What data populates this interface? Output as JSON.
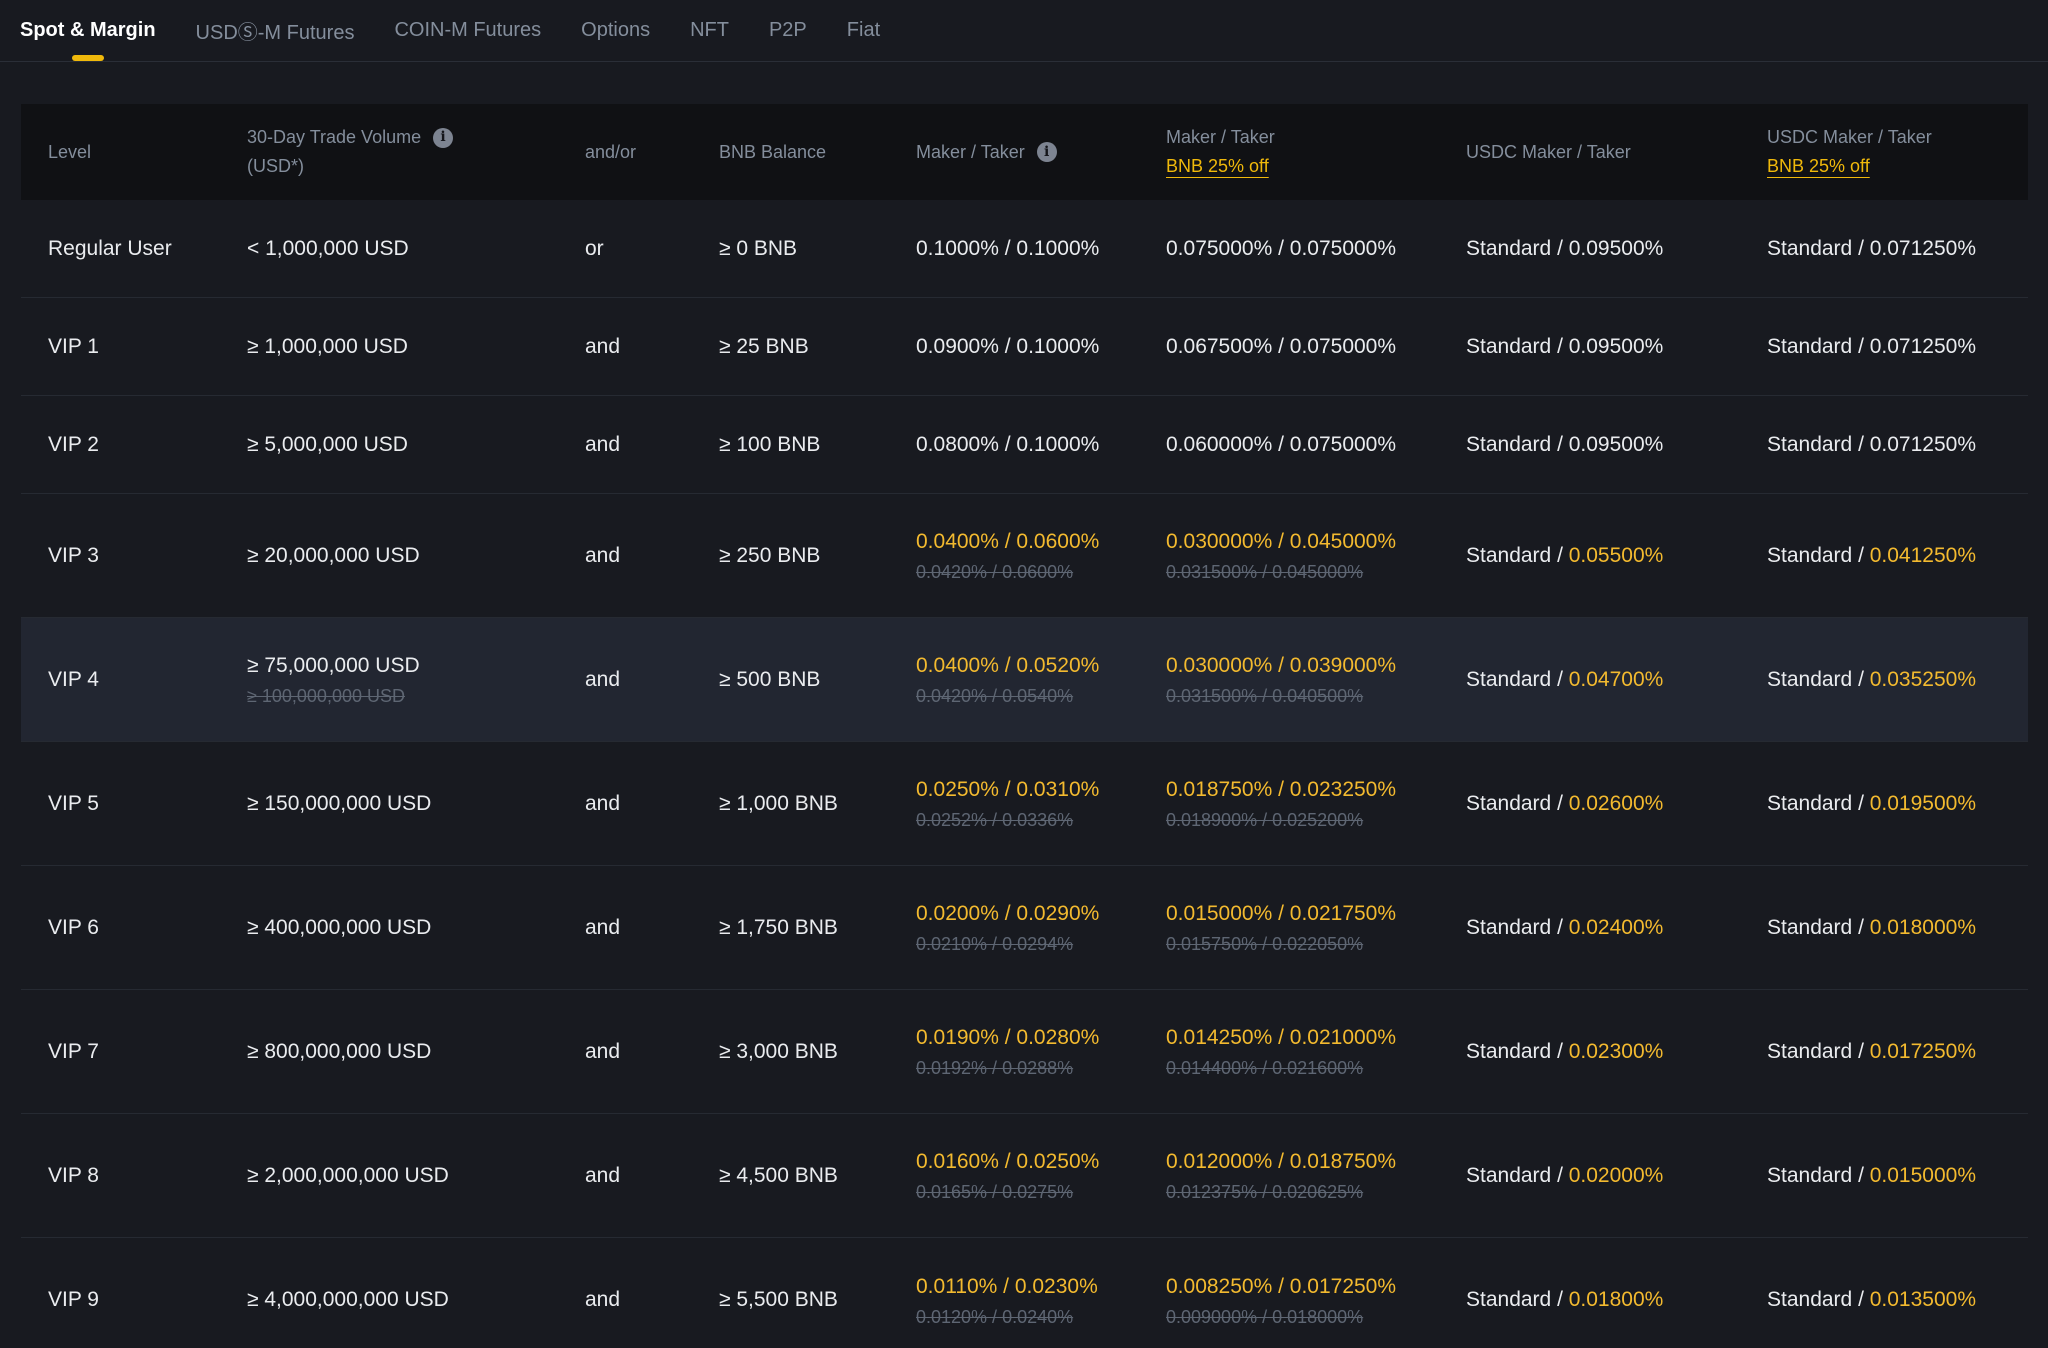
{
  "colors": {
    "background": "#181a20",
    "table_header_bg": "#101114",
    "highlight_row_bg": "#222631",
    "text_primary": "#eaecef",
    "text_muted": "#848e9c",
    "text_strikethrough": "#5e6673",
    "accent_link": "#f0b90b",
    "accent_value": "#f3ba2f",
    "divider": "#2a2e37"
  },
  "tabs": [
    {
      "label": "Spot & Margin",
      "active": true
    },
    {
      "label": "USDⓈ-M Futures",
      "active": false
    },
    {
      "label": "COIN-M Futures",
      "active": false
    },
    {
      "label": "Options",
      "active": false
    },
    {
      "label": "NFT",
      "active": false
    },
    {
      "label": "P2P",
      "active": false
    },
    {
      "label": "Fiat",
      "active": false
    }
  ],
  "table": {
    "headers": {
      "level": "Level",
      "volume_line1": "30-Day Trade Volume",
      "volume_line2": "(USD*)",
      "volume_info_icon": "info-icon",
      "andor": "and/or",
      "bnb_balance": "BNB Balance",
      "maker_taker": "Maker / Taker",
      "maker_taker_info_icon": "info-icon",
      "maker_taker_bnb": "Maker / Taker",
      "maker_taker_bnb_link": "BNB 25% off",
      "usdc_maker_taker": "USDC Maker / Taker",
      "usdc_maker_taker_bnb": "USDC Maker / Taker",
      "usdc_maker_taker_bnb_link": "BNB 25% off"
    },
    "rows": [
      {
        "level": "Regular User",
        "volume": "< 1,000,000 USD",
        "volume_old": "",
        "conjunction": "or",
        "bnb_balance": "≥ 0 BNB",
        "maker_taker": "0.1000% / 0.1000%",
        "maker_taker_old": "",
        "maker_taker_bnb": "0.075000% / 0.075000%",
        "maker_taker_bnb_old": "",
        "usdc_prefix": "Standard / ",
        "usdc_value": "0.09500%",
        "usdc_bnb_prefix": "Standard / ",
        "usdc_bnb_value": "0.071250%",
        "discounted": false,
        "highlighted": false
      },
      {
        "level": "VIP 1",
        "volume": "≥ 1,000,000 USD",
        "volume_old": "",
        "conjunction": "and",
        "bnb_balance": "≥ 25 BNB",
        "maker_taker": "0.0900% / 0.1000%",
        "maker_taker_old": "",
        "maker_taker_bnb": "0.067500% / 0.075000%",
        "maker_taker_bnb_old": "",
        "usdc_prefix": "Standard / ",
        "usdc_value": "0.09500%",
        "usdc_bnb_prefix": "Standard / ",
        "usdc_bnb_value": "0.071250%",
        "discounted": false,
        "highlighted": false
      },
      {
        "level": "VIP 2",
        "volume": "≥ 5,000,000 USD",
        "volume_old": "",
        "conjunction": "and",
        "bnb_balance": "≥ 100 BNB",
        "maker_taker": "0.0800% / 0.1000%",
        "maker_taker_old": "",
        "maker_taker_bnb": "0.060000% / 0.075000%",
        "maker_taker_bnb_old": "",
        "usdc_prefix": "Standard / ",
        "usdc_value": "0.09500%",
        "usdc_bnb_prefix": "Standard / ",
        "usdc_bnb_value": "0.071250%",
        "discounted": false,
        "highlighted": false
      },
      {
        "level": "VIP 3",
        "volume": "≥ 20,000,000 USD",
        "volume_old": "",
        "conjunction": "and",
        "bnb_balance": "≥ 250 BNB",
        "maker_taker": "0.0400% / 0.0600%",
        "maker_taker_old": "0.0420% / 0.0600%",
        "maker_taker_bnb": "0.030000% / 0.045000%",
        "maker_taker_bnb_old": "0.031500% / 0.045000%",
        "usdc_prefix": "Standard / ",
        "usdc_value": "0.05500%",
        "usdc_bnb_prefix": "Standard / ",
        "usdc_bnb_value": "0.041250%",
        "discounted": true,
        "highlighted": false
      },
      {
        "level": "VIP 4",
        "volume": "≥ 75,000,000 USD",
        "volume_old": "≥ 100,000,000 USD",
        "conjunction": "and",
        "bnb_balance": "≥ 500 BNB",
        "maker_taker": "0.0400% / 0.0520%",
        "maker_taker_old": "0.0420% / 0.0540%",
        "maker_taker_bnb": "0.030000% / 0.039000%",
        "maker_taker_bnb_old": "0.031500% / 0.040500%",
        "usdc_prefix": "Standard / ",
        "usdc_value": "0.04700%",
        "usdc_bnb_prefix": "Standard / ",
        "usdc_bnb_value": "0.035250%",
        "discounted": true,
        "highlighted": true
      },
      {
        "level": "VIP 5",
        "volume": "≥ 150,000,000 USD",
        "volume_old": "",
        "conjunction": "and",
        "bnb_balance": "≥ 1,000 BNB",
        "maker_taker": "0.0250% / 0.0310%",
        "maker_taker_old": "0.0252% / 0.0336%",
        "maker_taker_bnb": "0.018750% / 0.023250%",
        "maker_taker_bnb_old": "0.018900% / 0.025200%",
        "usdc_prefix": "Standard / ",
        "usdc_value": "0.02600%",
        "usdc_bnb_prefix": "Standard / ",
        "usdc_bnb_value": "0.019500%",
        "discounted": true,
        "highlighted": false
      },
      {
        "level": "VIP 6",
        "volume": "≥ 400,000,000 USD",
        "volume_old": "",
        "conjunction": "and",
        "bnb_balance": "≥ 1,750 BNB",
        "maker_taker": "0.0200% / 0.0290%",
        "maker_taker_old": "0.0210% / 0.0294%",
        "maker_taker_bnb": "0.015000% / 0.021750%",
        "maker_taker_bnb_old": "0.015750% / 0.022050%",
        "usdc_prefix": "Standard / ",
        "usdc_value": "0.02400%",
        "usdc_bnb_prefix": "Standard / ",
        "usdc_bnb_value": "0.018000%",
        "discounted": true,
        "highlighted": false
      },
      {
        "level": "VIP 7",
        "volume": "≥ 800,000,000 USD",
        "volume_old": "",
        "conjunction": "and",
        "bnb_balance": "≥ 3,000 BNB",
        "maker_taker": "0.0190% / 0.0280%",
        "maker_taker_old": "0.0192% / 0.0288%",
        "maker_taker_bnb": "0.014250% / 0.021000%",
        "maker_taker_bnb_old": "0.014400% / 0.021600%",
        "usdc_prefix": "Standard / ",
        "usdc_value": "0.02300%",
        "usdc_bnb_prefix": "Standard / ",
        "usdc_bnb_value": "0.017250%",
        "discounted": true,
        "highlighted": false
      },
      {
        "level": "VIP 8",
        "volume": "≥ 2,000,000,000 USD",
        "volume_old": "",
        "conjunction": "and",
        "bnb_balance": "≥ 4,500 BNB",
        "maker_taker": "0.0160% / 0.0250%",
        "maker_taker_old": "0.0165% / 0.0275%",
        "maker_taker_bnb": "0.012000% / 0.018750%",
        "maker_taker_bnb_old": "0.012375% / 0.020625%",
        "usdc_prefix": "Standard / ",
        "usdc_value": "0.02000%",
        "usdc_bnb_prefix": "Standard / ",
        "usdc_bnb_value": "0.015000%",
        "discounted": true,
        "highlighted": false
      },
      {
        "level": "VIP 9",
        "volume": "≥ 4,000,000,000 USD",
        "volume_old": "",
        "conjunction": "and",
        "bnb_balance": "≥ 5,500 BNB",
        "maker_taker": "0.0110% / 0.0230%",
        "maker_taker_old": "0.0120% / 0.0240%",
        "maker_taker_bnb": "0.008250% / 0.017250%",
        "maker_taker_bnb_old": "0.009000% / 0.018000%",
        "usdc_prefix": "Standard / ",
        "usdc_value": "0.01800%",
        "usdc_bnb_prefix": "Standard / ",
        "usdc_bnb_value": "0.013500%",
        "discounted": true,
        "highlighted": false
      }
    ]
  }
}
